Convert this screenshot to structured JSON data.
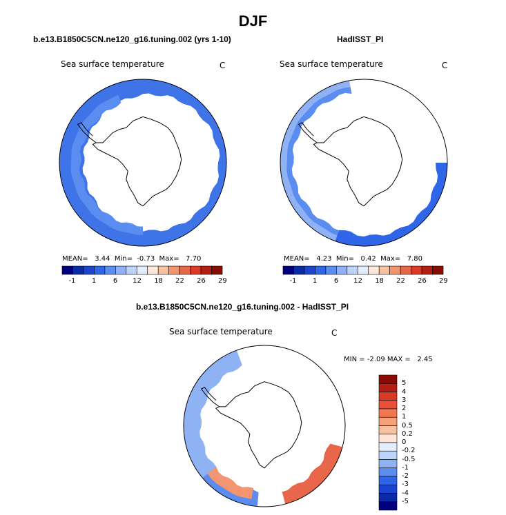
{
  "title": "DJF",
  "panels": [
    {
      "title": "b.e13.B1850C5CN.ne120_g16.tuning.002 (yrs 1-10)",
      "variable": "Sea surface temperature",
      "units": "C",
      "stats": {
        "mean_label": "MEAN=",
        "mean": "3.44",
        "min_label": "Min=",
        "min": "-0.73",
        "max_label": "Max=",
        "max": "7.70"
      }
    },
    {
      "title": "HadISST_PI",
      "variable": "Sea surface temperature",
      "units": "C",
      "stats": {
        "mean_label": "MEAN=",
        "mean": "4.23",
        "min_label": "Min=",
        "min": "0.42",
        "max_label": "Max=",
        "max": "7.80"
      }
    },
    {
      "title": "b.e13.B1850C5CN.ne120_g16.tuning.002 - HadISST_PI",
      "variable": "Sea surface temperature",
      "units": "C",
      "stats": {
        "min_label": "MIN =",
        "min": "-2.09",
        "max_label": "MAX =",
        "max": "2.45"
      }
    }
  ],
  "colorbar_abs": {
    "ticks": [
      "-1",
      "1",
      "6",
      "12",
      "18",
      "22",
      "26",
      "29"
    ],
    "colors": [
      "#00007f",
      "#0a2aa8",
      "#1a44d0",
      "#2f66e8",
      "#5b8cf0",
      "#8fb2f5",
      "#bcd3fa",
      "#e3edfd",
      "#fde9dc",
      "#f8c1a2",
      "#f29570",
      "#e8664a",
      "#d93a24",
      "#b41e10",
      "#8a0a04"
    ]
  },
  "colorbar_diff": {
    "ticks": [
      "5",
      "4",
      "3",
      "2",
      "1",
      "0.5",
      "0.2",
      "0",
      "-0.2",
      "-0.5",
      "-1",
      "-2",
      "-3",
      "-4",
      "-5"
    ],
    "colors": [
      "#8a0a04",
      "#b41e10",
      "#d93a24",
      "#e8503a",
      "#f07850",
      "#f5a078",
      "#f8c1a2",
      "#fde4d4",
      "#e3edfd",
      "#bcd3fa",
      "#8fb2f5",
      "#5b8cf0",
      "#2f66e8",
      "#1a44d0",
      "#0a2aa8",
      "#00007f"
    ]
  },
  "field_colors": {
    "model_outer": "#3f73e8",
    "model_inner": "#5b8cf0",
    "obs_outer": "#8fb2f5",
    "obs_mid": "#5b8cf0",
    "obs_inner": "#2f66e8",
    "diff_blue_light": "#8fb2f5",
    "diff_blue": "#5b8cf0",
    "diff_red": "#f29570",
    "diff_red_dark": "#e8664a"
  },
  "chart_data": [
    {
      "type": "heatmap",
      "title": "b.e13.B1850C5CN.ne120_g16.tuning.002 (yrs 1-10)",
      "variable": "Sea surface temperature",
      "units": "C",
      "mean": 3.44,
      "min": -0.73,
      "max": 7.7,
      "levels": [
        -1,
        1,
        6,
        12,
        18,
        22,
        26,
        29
      ]
    },
    {
      "type": "heatmap",
      "title": "HadISST_PI",
      "variable": "Sea surface temperature",
      "units": "C",
      "mean": 4.23,
      "min": 0.42,
      "max": 7.8,
      "levels": [
        -1,
        1,
        6,
        12,
        18,
        22,
        26,
        29
      ]
    },
    {
      "type": "heatmap",
      "title": "b.e13.B1850C5CN.ne120_g16.tuning.002 - HadISST_PI",
      "variable": "Sea surface temperature",
      "units": "C",
      "min": -2.09,
      "max": 2.45,
      "levels": [
        -5,
        -4,
        -3,
        -2,
        -1,
        -0.5,
        -0.2,
        0,
        0.2,
        0.5,
        1,
        2,
        3,
        4,
        5
      ]
    }
  ]
}
